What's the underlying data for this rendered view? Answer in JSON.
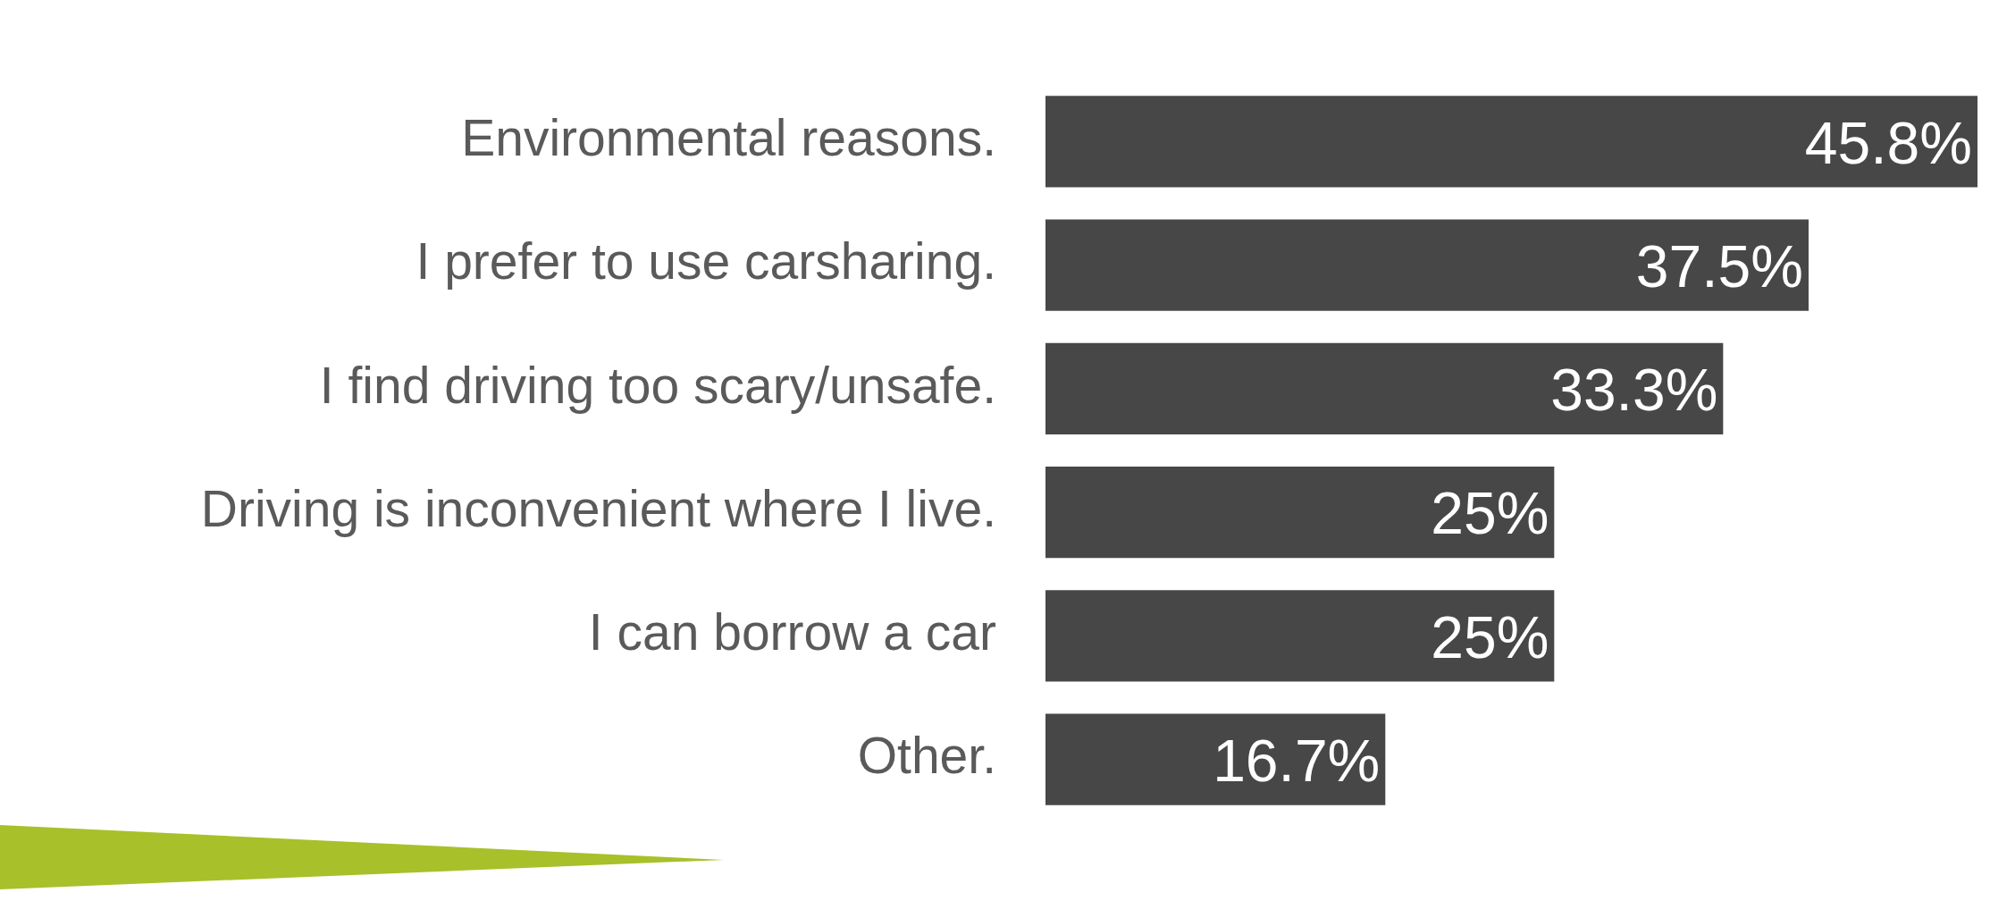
{
  "chart_data": {
    "type": "bar",
    "orientation": "horizontal",
    "categories": [
      "Environmental reasons.",
      "I prefer to use carsharing.",
      "I find driving too scary/unsafe.",
      "Driving is inconvenient where I live.",
      "I can borrow a car",
      "Other."
    ],
    "values": [
      45.8,
      37.5,
      33.3,
      25,
      25,
      16.7
    ],
    "value_labels": [
      "45.8%",
      "37.5%",
      "33.3%",
      "25%",
      "25%",
      "16.7%"
    ],
    "color": "#474747",
    "legend": false,
    "tick_labels": "y"
  }
}
